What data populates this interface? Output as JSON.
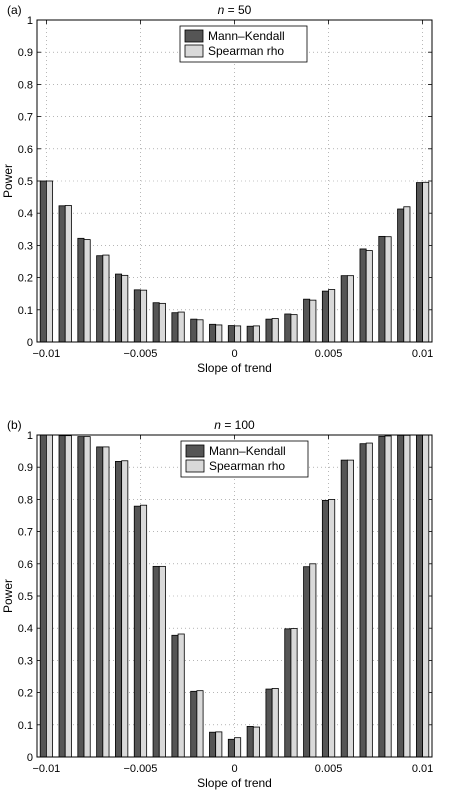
{
  "chart_data": [
    {
      "type": "bar",
      "panel_tag": "(a)",
      "title_var": "n",
      "title_rest": " = 50",
      "xlabel": "Slope of trend",
      "ylabel": "Power",
      "ylim": [
        0,
        1
      ],
      "xlim": [
        -0.0105,
        0.0105
      ],
      "yticks": [
        "0",
        "0.1",
        "0.2",
        "0.3",
        "0.4",
        "0.5",
        "0.6",
        "0.7",
        "0.8",
        "0.9",
        "1"
      ],
      "xticks": [
        {
          "v": -0.01,
          "label": "−0.01"
        },
        {
          "v": -0.005,
          "label": "−0.005"
        },
        {
          "v": 0,
          "label": "0"
        },
        {
          "v": 0.005,
          "label": "0.005"
        },
        {
          "v": 0.01,
          "label": "0.01"
        }
      ],
      "grid": true,
      "legend_position": "top-center",
      "x": [
        -0.01,
        -0.009,
        -0.008,
        -0.007,
        -0.006,
        -0.005,
        -0.004,
        -0.003,
        -0.002,
        -0.001,
        0,
        0.001,
        0.002,
        0.003,
        0.004,
        0.005,
        0.006,
        0.007,
        0.008,
        0.009,
        0.01
      ],
      "series": [
        {
          "name": "Mann–Kendall",
          "color": "#555555",
          "values": [
            0.5,
            0.423,
            0.322,
            0.268,
            0.211,
            0.162,
            0.122,
            0.091,
            0.071,
            0.055,
            0.051,
            0.049,
            0.071,
            0.087,
            0.133,
            0.158,
            0.206,
            0.289,
            0.328,
            0.413,
            0.495
          ]
        },
        {
          "name": "Spearman rho",
          "color": "#d9d9d9",
          "values": [
            0.5,
            0.424,
            0.318,
            0.27,
            0.207,
            0.161,
            0.12,
            0.093,
            0.069,
            0.053,
            0.05,
            0.05,
            0.073,
            0.085,
            0.13,
            0.163,
            0.206,
            0.284,
            0.327,
            0.42,
            0.496
          ]
        }
      ]
    },
    {
      "type": "bar",
      "panel_tag": "(b)",
      "title_var": "n",
      "title_rest": " = 100",
      "xlabel": "Slope of trend",
      "ylabel": "Power",
      "ylim": [
        0,
        1
      ],
      "xlim": [
        -0.0105,
        0.0105
      ],
      "yticks": [
        "0",
        "0.1",
        "0.2",
        "0.3",
        "0.4",
        "0.5",
        "0.6",
        "0.7",
        "0.8",
        "0.9",
        "1"
      ],
      "xticks": [
        {
          "v": -0.01,
          "label": "−0.01"
        },
        {
          "v": -0.005,
          "label": "−0.005"
        },
        {
          "v": 0,
          "label": "0"
        },
        {
          "v": 0.005,
          "label": "0.005"
        },
        {
          "v": 0.01,
          "label": "0.01"
        }
      ],
      "grid": true,
      "legend_position": "top-center",
      "x": [
        -0.01,
        -0.009,
        -0.008,
        -0.007,
        -0.006,
        -0.005,
        -0.004,
        -0.003,
        -0.002,
        -0.001,
        0,
        0.001,
        0.002,
        0.003,
        0.004,
        0.005,
        0.006,
        0.007,
        0.008,
        0.009,
        0.01
      ],
      "series": [
        {
          "name": "Mann–Kendall",
          "color": "#555555",
          "values": [
            1.0,
            0.998,
            0.995,
            0.963,
            0.918,
            0.779,
            0.592,
            0.378,
            0.204,
            0.077,
            0.055,
            0.095,
            0.211,
            0.398,
            0.591,
            0.797,
            0.922,
            0.973,
            0.996,
            0.999,
            1.0
          ]
        },
        {
          "name": "Spearman rho",
          "color": "#d9d9d9",
          "values": [
            1.0,
            0.998,
            0.995,
            0.963,
            0.92,
            0.782,
            0.592,
            0.382,
            0.206,
            0.078,
            0.06,
            0.093,
            0.213,
            0.399,
            0.6,
            0.8,
            0.922,
            0.975,
            0.997,
            0.999,
            1.0
          ]
        }
      ]
    }
  ]
}
